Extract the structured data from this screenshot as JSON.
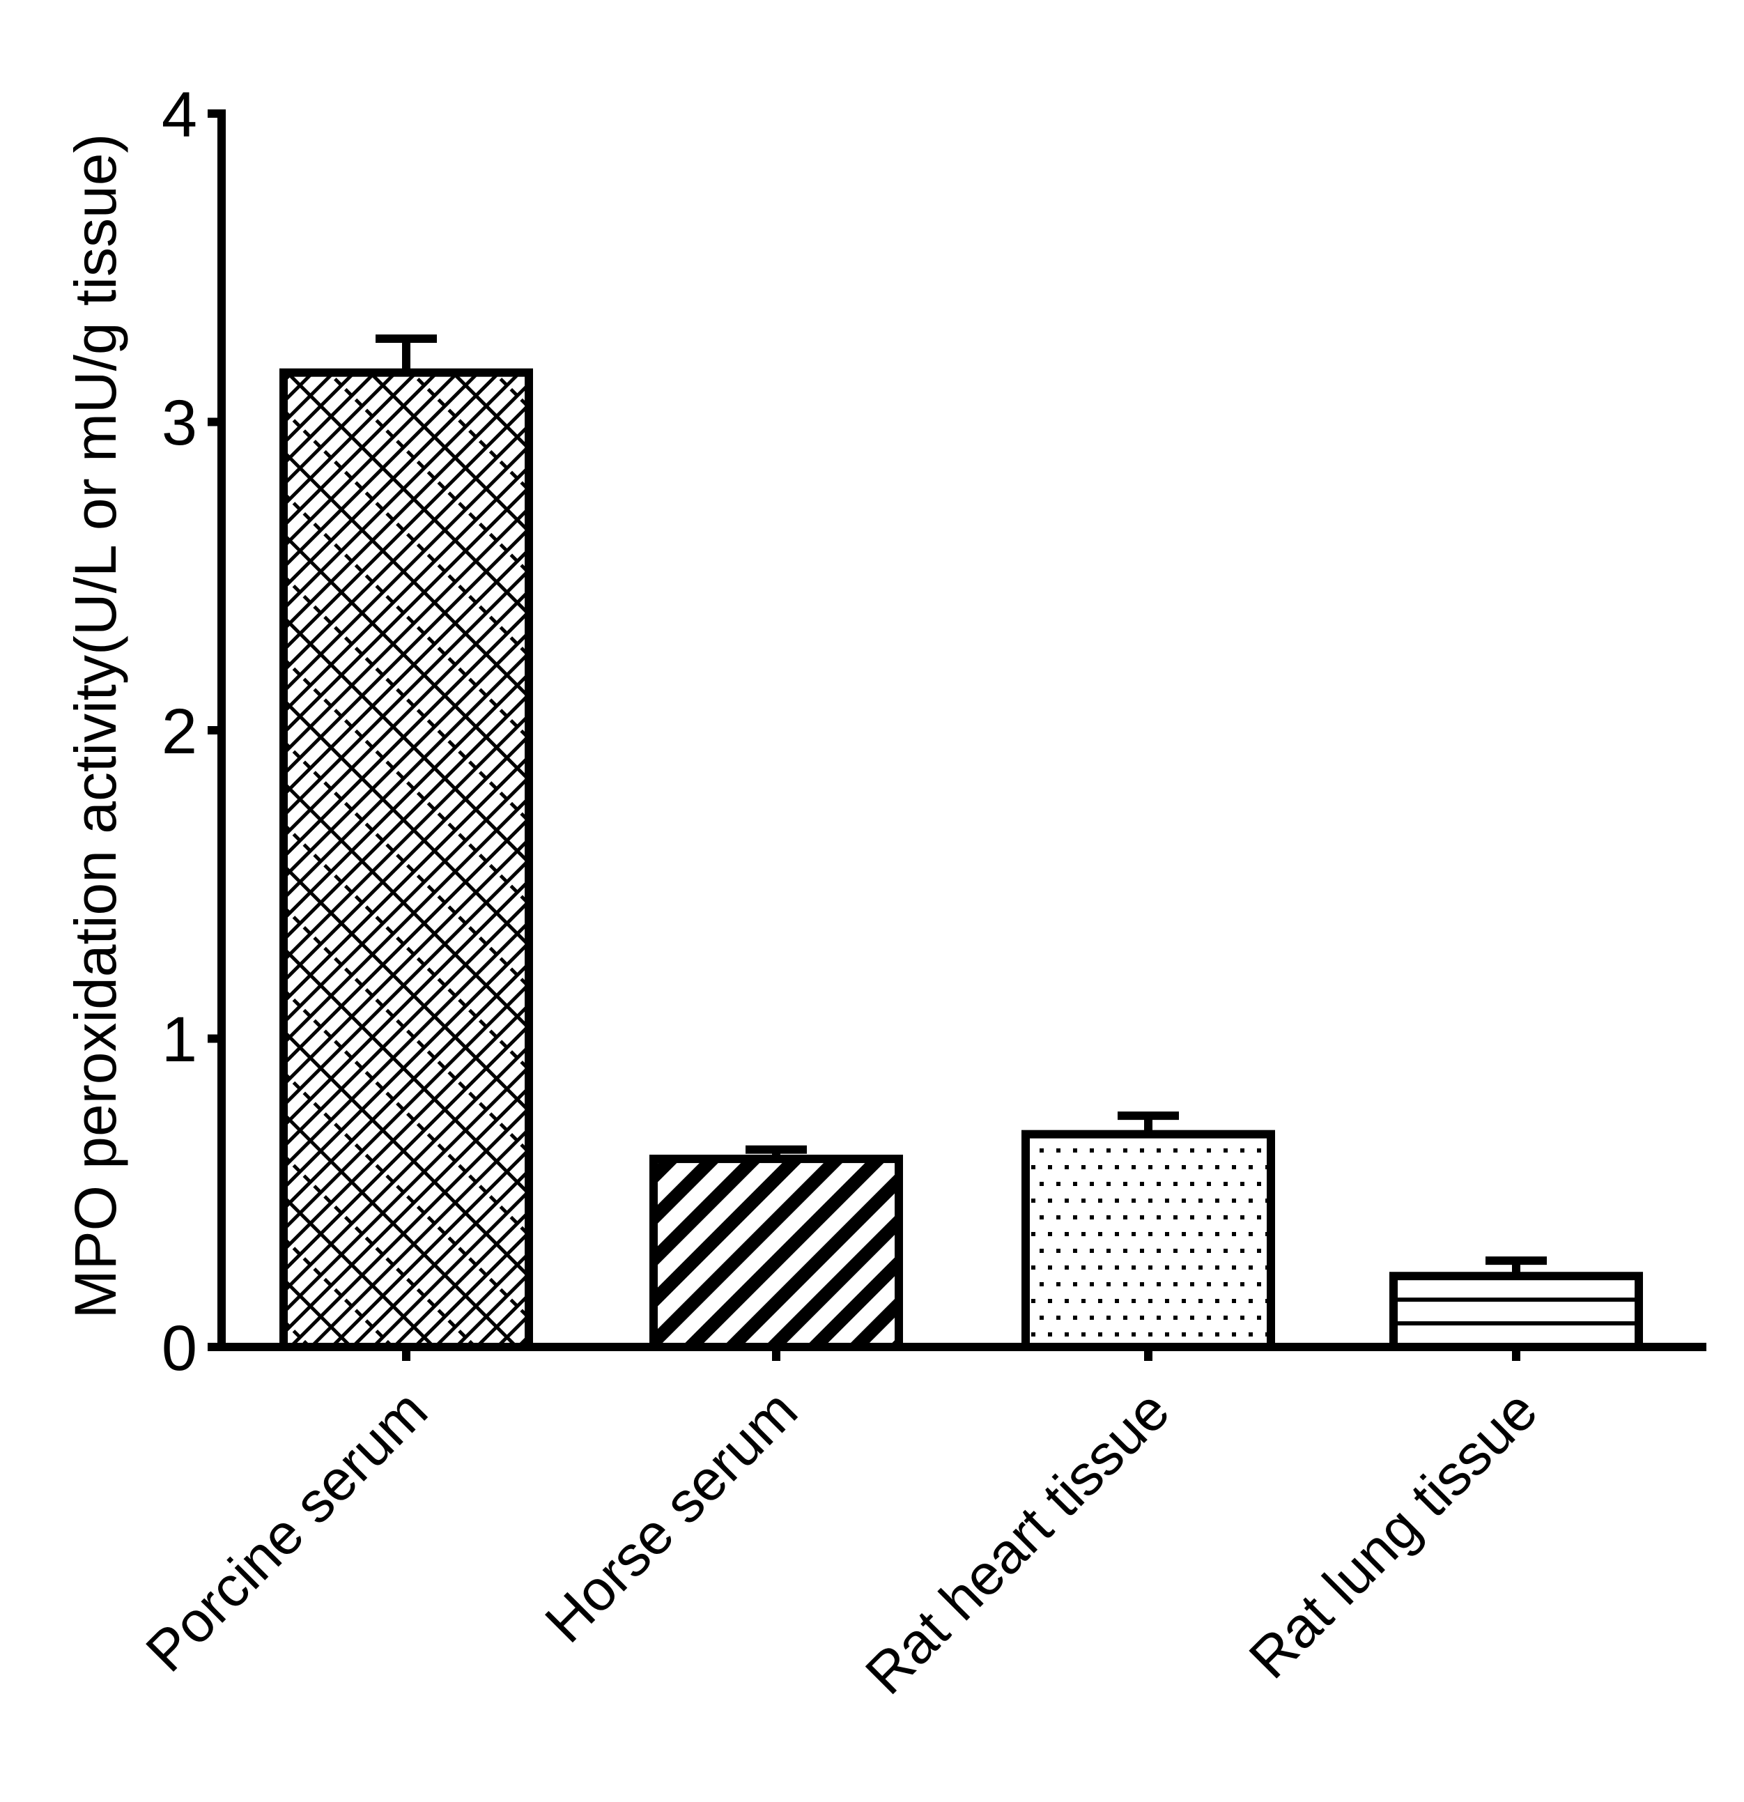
{
  "chart_data": {
    "type": "bar",
    "title": "",
    "xlabel": "",
    "ylabel": "MPO peroxidation activity(U/L or mU/g tissue)",
    "categories": [
      "Porcine serum",
      "Horse serum",
      "Rat heart tissue",
      "Rat lung tissue"
    ],
    "values": [
      3.16,
      0.61,
      0.69,
      0.23
    ],
    "error_bars": [
      0.11,
      0.03,
      0.06,
      0.05
    ],
    "fill_patterns": [
      "diagonal-brick",
      "diagonal-stripes",
      "dots",
      "horizontal-lines"
    ],
    "ylim": [
      0,
      4
    ],
    "yticks": [
      0,
      1,
      2,
      3,
      4
    ],
    "grid": false,
    "legend": null
  },
  "axis": {
    "ylabel": "MPO peroxidation activity(U/L or mU/g tissue)",
    "yticks": [
      "0",
      "1",
      "2",
      "3",
      "4"
    ],
    "categories": [
      "Porcine serum",
      "Horse serum",
      "Rat heart tissue",
      "Rat lung tissue"
    ]
  },
  "colors": {
    "stroke": "#000000",
    "background": "#ffffff"
  }
}
